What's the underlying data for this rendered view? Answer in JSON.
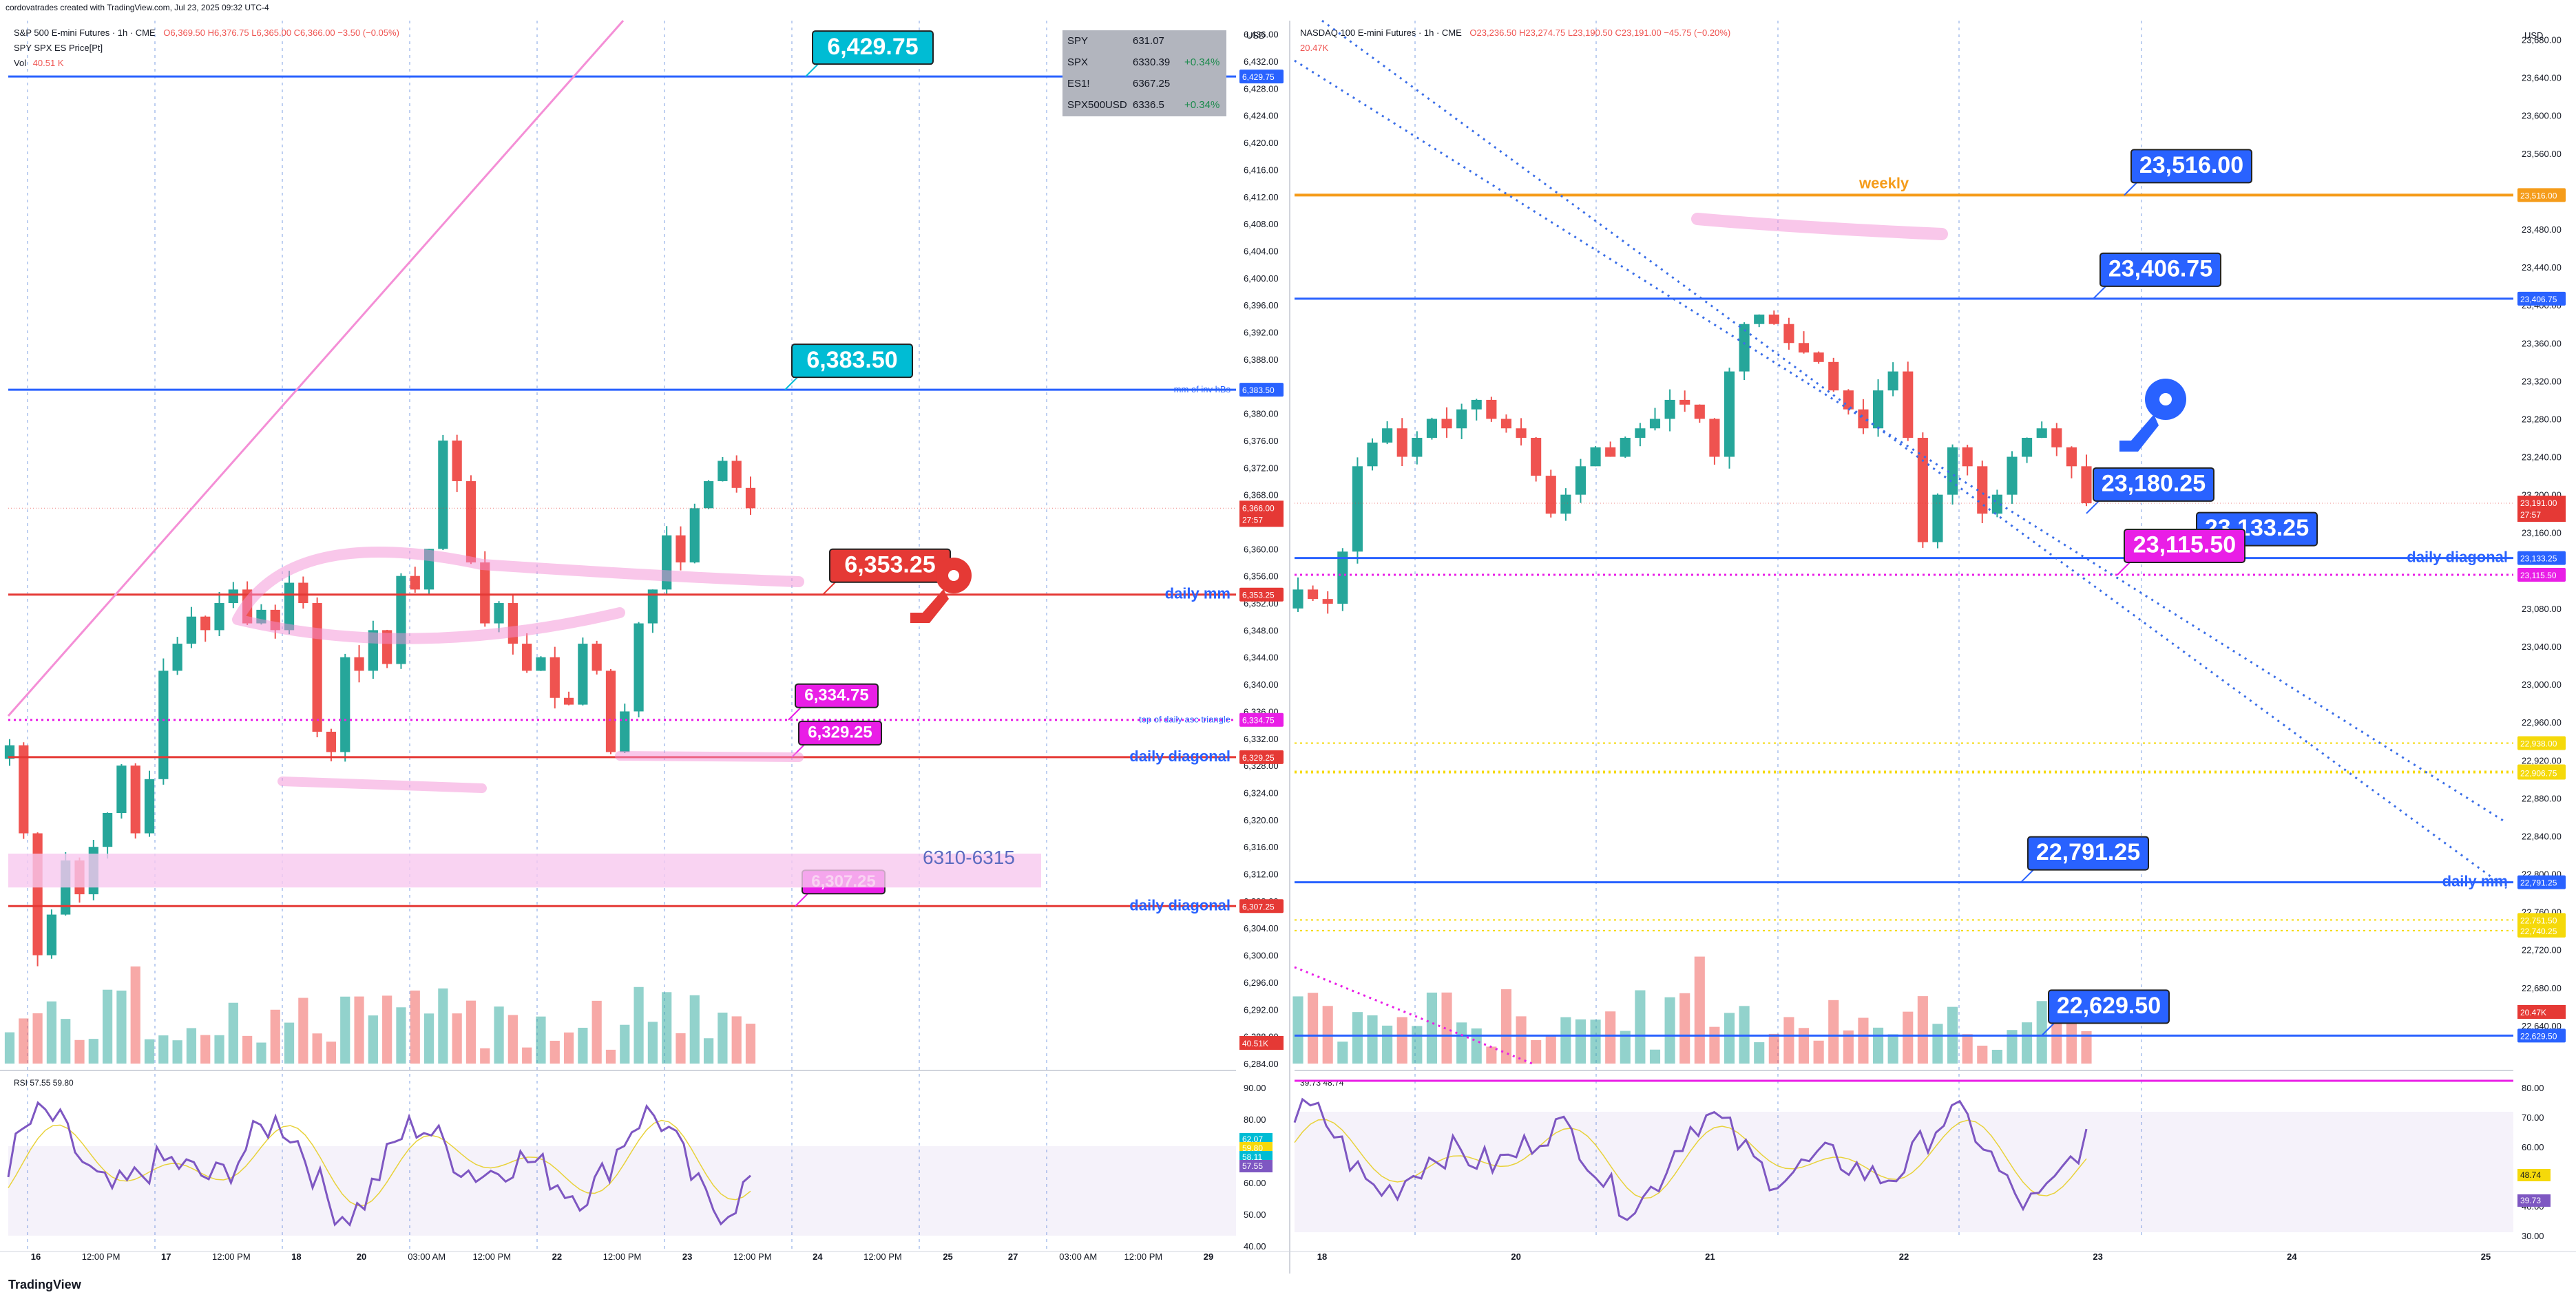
{
  "header": {
    "attribution": "cordovatrades created with TradingView.com, Jul 23, 2025 09:32 UTC-4",
    "left_symbol": "S&P 500 E-mini Futures · 1h · CME",
    "left_ohlc": "O6,369.50  H6,376.75  L6,365.00  C6,366.00  −3.50 (−0.05%)",
    "left_sub1": "SPY SPX ES Price[Pt]",
    "left_vol_label": "Vol",
    "left_vol_value": "40.51 K",
    "right_symbol": "NASDAQ 100 E-mini Futures · 1h · CME",
    "right_ohlc": "O23,236.50  H23,274.75  L23,190.50  C23,191.00  −45.75 (−0.20%)",
    "right_vol_value": "20.47K",
    "currency": "USD",
    "footer_brand": "TradingView"
  },
  "colors": {
    "up": "#26a69a",
    "down": "#ef5350",
    "blue_line": "#2962ff",
    "red_line": "#e53935",
    "magenta": "#e91ee6",
    "orange": "#f59c1a",
    "yellow": "#f5d90a",
    "rsi": "#7e57c2",
    "cyan_label": "#00bcd4",
    "blue_label": "#2962ff"
  },
  "watchlist": [
    {
      "sym": "SPY",
      "price": "631.07",
      "chg": ""
    },
    {
      "sym": "SPX",
      "price": "6330.39",
      "chg": "+0.34%"
    },
    {
      "sym": "ES1!",
      "price": "6367.25",
      "chg": ""
    },
    {
      "sym": "SPX500USD",
      "price": "6336.5",
      "chg": "+0.34%"
    }
  ],
  "chart_data": [
    {
      "type": "line",
      "title": "S&P 500 E-mini Futures · 1h · CME",
      "ylim": [
        6284,
        6438
      ],
      "y_ticks": [
        "6,436.00",
        "6,432.00",
        "6,428.00",
        "6,424.00",
        "6,420.00",
        "6,416.00",
        "6,412.00",
        "6,408.00",
        "6,404.00",
        "6,400.00",
        "6,396.00",
        "6,392.00",
        "6,388.00",
        "6,384.00",
        "6,380.00",
        "6,376.00",
        "6,372.00",
        "6,368.00",
        "6,364.00",
        "6,360.00",
        "6,356.00",
        "6,352.00",
        "6,348.00",
        "6,344.00",
        "6,340.00",
        "6,336.00",
        "6,332.00",
        "6,328.00",
        "6,324.00",
        "6,320.00",
        "6,316.00",
        "6,312.00",
        "6,308.00",
        "6,304.00",
        "6,300.00",
        "6,296.00",
        "6,292.00",
        "6,288.00",
        "6,284.00"
      ],
      "x_ticks": [
        "16",
        "12:00 PM",
        "17",
        "12:00 PM",
        "18",
        "20",
        "03:00 AM",
        "12:00 PM",
        "22",
        "12:00 PM",
        "23",
        "12:00 PM",
        "24",
        "12:00 PM",
        "25",
        "27",
        "03:00 AM",
        "12:00 PM",
        "29"
      ],
      "levels": [
        {
          "value": 6429.75,
          "label": "6,429.75",
          "axis": "6,429.75",
          "style": "blue",
          "note": ""
        },
        {
          "value": 6383.5,
          "label": "6,383.50",
          "axis": "6,383.50",
          "style": "blue",
          "note": "mm of inv hBs"
        },
        {
          "value": 6353.25,
          "label": "6,353.25",
          "axis": "6,353.25",
          "style": "red",
          "note": "daily mm"
        },
        {
          "value": 6334.75,
          "label": "6,334.75",
          "axis": "6,334.75",
          "style": "magenta-dotted",
          "note": "top of daily asc triangle"
        },
        {
          "value": 6329.25,
          "label": "6,329.25",
          "axis": "6,329.25",
          "style": "red",
          "note": "daily diagonal"
        },
        {
          "value": 6307.25,
          "label": "6,307.25",
          "axis": "6,307.25",
          "style": "red",
          "note": "daily diagonal"
        }
      ],
      "zone_label": "6310-6315",
      "current_price": "6,366.00",
      "countdown": "27:57",
      "vol_axis": "40.51K",
      "closes": [
        6331,
        6318,
        6300,
        6306,
        6314,
        6309,
        6316,
        6321,
        6328,
        6318,
        6326,
        6342,
        6346,
        6350,
        6348,
        6352,
        6354,
        6349,
        6351,
        6348,
        6355,
        6352,
        6333,
        6330,
        6344,
        6342,
        6348,
        6343,
        6356,
        6354,
        6360,
        6376,
        6370,
        6358,
        6349,
        6352,
        6346,
        6342,
        6344,
        6338,
        6337,
        6346,
        6342,
        6330,
        6336,
        6349,
        6354,
        6362,
        6358,
        6366,
        6370,
        6373,
        6369,
        6366
      ]
    },
    {
      "type": "line",
      "title": "NASDAQ 100 E-mini Futures · 1h · CME",
      "ylim": [
        22600,
        23700
      ],
      "y_ticks": [
        "23,680.00",
        "23,640.00",
        "23,600.00",
        "23,560.00",
        "23,520.00",
        "23,480.00",
        "23,440.00",
        "23,400.00",
        "23,360.00",
        "23,320.00",
        "23,280.00",
        "23,240.00",
        "23,200.00",
        "23,160.00",
        "23,120.00",
        "23,080.00",
        "23,040.00",
        "23,000.00",
        "22,960.00",
        "22,920.00",
        "22,880.00",
        "22,840.00",
        "22,800.00",
        "22,760.00",
        "22,720.00",
        "22,680.00",
        "22,640.00"
      ],
      "x_ticks": [
        "18",
        "20",
        "21",
        "22",
        "23",
        "24",
        "25"
      ],
      "levels": [
        {
          "value": 23516.0,
          "label": "23,516.00",
          "axis": "23,516.00",
          "style": "orange",
          "note": "weekly"
        },
        {
          "value": 23406.75,
          "label": "23,406.75",
          "axis": "23,406.75",
          "style": "blue",
          "note": ""
        },
        {
          "value": 23180.25,
          "label": "23,180.25",
          "axis": "",
          "style": "label",
          "note": ""
        },
        {
          "value": 23133.25,
          "label": "23,133.25",
          "axis": "23,133.25",
          "style": "blue",
          "note": "daily diagonal"
        },
        {
          "value": 23115.5,
          "label": "23,115.50",
          "axis": "23,115.50",
          "style": "magenta-dotted",
          "note": ""
        },
        {
          "value": 22938.0,
          "label": "",
          "axis": "22,938.00",
          "style": "yellow",
          "note": ""
        },
        {
          "value": 22908.25,
          "label": "",
          "axis": "22,908.25",
          "style": "yellow",
          "note": ""
        },
        {
          "value": 22906.75,
          "label": "",
          "axis": "22,906.75",
          "style": "yellow",
          "note": ""
        },
        {
          "value": 22791.25,
          "label": "22,791.25",
          "axis": "22,791.25",
          "style": "blue",
          "note": "daily mm"
        },
        {
          "value": 22751.5,
          "label": "",
          "axis": "22,751.50",
          "style": "yellow",
          "note": ""
        },
        {
          "value": 22740.25,
          "label": "",
          "axis": "22,740.25",
          "style": "yellow",
          "note": ""
        },
        {
          "value": 22629.5,
          "label": "22,629.50",
          "axis": "22,629.50",
          "style": "blue",
          "note": ""
        }
      ],
      "current_price": "23,191.00",
      "countdown": "27:57",
      "vol_axis": "20.47K",
      "closes": [
        23100,
        23090,
        23085,
        23140,
        23230,
        23255,
        23270,
        23240,
        23260,
        23280,
        23270,
        23290,
        23300,
        23280,
        23270,
        23260,
        23220,
        23180,
        23200,
        23230,
        23250,
        23240,
        23260,
        23270,
        23280,
        23300,
        23295,
        23280,
        23240,
        23330,
        23380,
        23390,
        23380,
        23360,
        23350,
        23340,
        23310,
        23290,
        23270,
        23310,
        23330,
        23260,
        23150,
        23200,
        23250,
        23230,
        23180,
        23200,
        23240,
        23260,
        23270,
        23250,
        23230,
        23191
      ]
    }
  ],
  "rsi": {
    "left": {
      "label": "RSI",
      "value": "57.55",
      "ma": "59.80",
      "ticks": [
        "90.00",
        "80.00",
        "70.00",
        "60.00",
        "50.00",
        "40.00"
      ],
      "axis_labels": [
        "62.07",
        "59.80",
        "58.11",
        "57.55"
      ]
    },
    "right": {
      "value": "39.73",
      "ma": "48.74",
      "ticks": [
        "80.00",
        "70.00",
        "60.00",
        "50.00",
        "40.00",
        "30.00"
      ],
      "axis_labels": [
        "48.74",
        "39.73"
      ]
    }
  }
}
